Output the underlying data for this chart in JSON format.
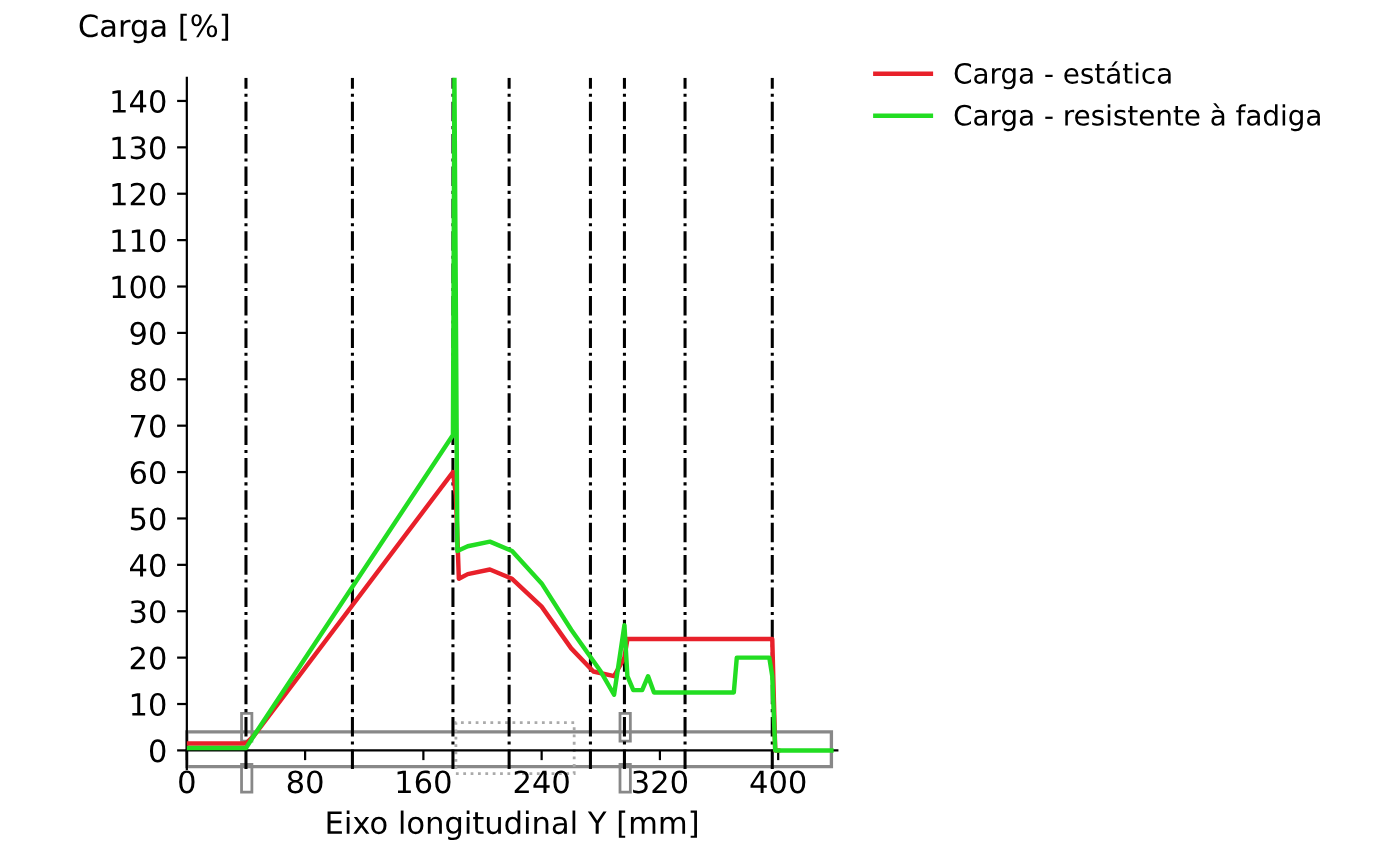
{
  "chart_data": {
    "type": "line",
    "ylabel": "Carga [%]",
    "xlabel": "Eixo longitudinal Y [mm]",
    "xlim": [
      0,
      440
    ],
    "xticks": [
      0,
      80,
      160,
      240,
      320,
      400
    ],
    "ylim": [
      -4,
      145
    ],
    "yticks": [
      0,
      10,
      20,
      30,
      40,
      50,
      60,
      70,
      80,
      90,
      100,
      110,
      120,
      130,
      140
    ],
    "legend": "top right",
    "grid": false,
    "marker": "none",
    "line_style": "solid",
    "series": [
      {
        "name": "Carga - estática",
        "color": "#e8202a",
        "x": [
          0,
          40,
          45,
          180,
          182,
          184,
          190,
          205,
          220,
          240,
          260,
          275,
          289,
          296,
          298,
          300,
          396,
          398,
          400
        ],
        "values": [
          1.5,
          1.5,
          3,
          60,
          55,
          37,
          38,
          39,
          37,
          31,
          22,
          17,
          16,
          20,
          24,
          24,
          24,
          0,
          0
        ]
      },
      {
        "name": "Carga - resistente à fadiga",
        "color": "#22dd22",
        "x": [
          0,
          40,
          45,
          180,
          181,
          183,
          190,
          205,
          220,
          240,
          260,
          280,
          289,
          296,
          298,
          302,
          308,
          312,
          316,
          370,
          372,
          394,
          396,
          398,
          436
        ],
        "values": [
          0.5,
          0.5,
          3,
          68,
          145,
          43,
          44,
          45,
          43,
          36,
          26,
          17,
          12,
          27,
          16,
          13,
          13,
          16,
          12.5,
          12.5,
          20,
          20,
          16,
          0,
          0
        ]
      }
    ],
    "ref_lines": [
      {
        "axis": "x",
        "value": 40,
        "line_style": "dashed",
        "color": "#000000"
      },
      {
        "axis": "x",
        "value": 112,
        "line_style": "dashed",
        "color": "#000000"
      },
      {
        "axis": "x",
        "value": 180,
        "line_style": "dashed",
        "color": "#000000"
      },
      {
        "axis": "x",
        "value": 218,
        "line_style": "dashed",
        "color": "#000000"
      },
      {
        "axis": "x",
        "value": 273,
        "line_style": "dashed",
        "color": "#000000"
      },
      {
        "axis": "x",
        "value": 296,
        "line_style": "dashed",
        "color": "#000000"
      },
      {
        "axis": "x",
        "value": 337,
        "line_style": "dashed",
        "color": "#000000"
      },
      {
        "axis": "x",
        "value": 396,
        "line_style": "dashed",
        "color": "#000000"
      }
    ]
  }
}
